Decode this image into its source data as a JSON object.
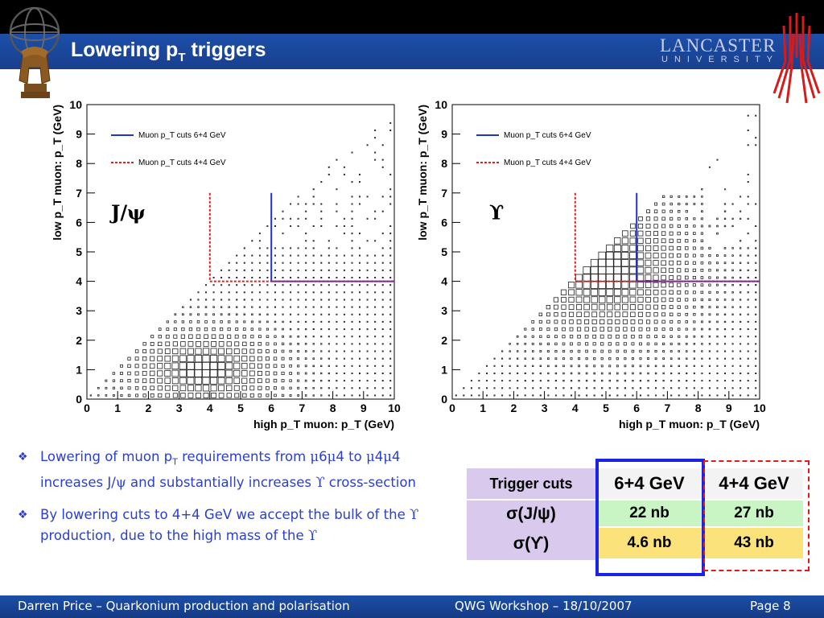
{
  "slide": {
    "title_main": "Lowering p",
    "title_sub": "T",
    "title_end": " triggers",
    "logo_text": "LANCASTER",
    "logo_subtext": "UNIVERSITY"
  },
  "chart_data": [
    {
      "type": "heatmap",
      "xlabel": "high p_T muon: p_T (GeV)",
      "ylabel": "low p_T muon: p_T (GeV)",
      "xlim": [
        0,
        10
      ],
      "ylim": [
        0,
        10
      ],
      "xticks": [
        "0",
        "1",
        "2",
        "3",
        "4",
        "5",
        "6",
        "7",
        "8",
        "9",
        "10"
      ],
      "yticks": [
        "0",
        "1",
        "2",
        "3",
        "4",
        "5",
        "6",
        "7",
        "8",
        "9",
        "10"
      ],
      "annotation": "J/ψ",
      "legend": [
        {
          "label": "Muon p_T cuts 6+4 GeV",
          "color": "#2233cc",
          "style": "solid"
        },
        {
          "label": "Muon p_T cuts 4+4 GeV",
          "color": "#e02020",
          "style": "dotted"
        }
      ],
      "legend_position": "top-left",
      "cuts": {
        "cut_6_4": {
          "x": 6,
          "y": 4
        },
        "cut_4_4": {
          "x": 4,
          "y": 4
        }
      },
      "peak": {
        "x": 3.8,
        "y": 1.0
      },
      "spread_x": 1.6,
      "spread_y": 0.9
    },
    {
      "type": "heatmap",
      "xlabel": "high p_T muon: p_T (GeV)",
      "ylabel": "low p_T muon: p_T (GeV)",
      "xlim": [
        0,
        10
      ],
      "ylim": [
        0,
        10
      ],
      "xticks": [
        "0",
        "1",
        "2",
        "3",
        "4",
        "5",
        "6",
        "7",
        "8",
        "9",
        "10"
      ],
      "yticks": [
        "0",
        "1",
        "2",
        "3",
        "4",
        "5",
        "6",
        "7",
        "8",
        "9",
        "10"
      ],
      "annotation": "ϒ",
      "legend": [
        {
          "label": "Muon p_T cuts 6+4 GeV",
          "color": "#2233cc",
          "style": "solid"
        },
        {
          "label": "Muon p_T cuts 4+4 GeV",
          "color": "#e02020",
          "style": "dotted"
        }
      ],
      "legend_position": "top-left",
      "cuts": {
        "cut_6_4": {
          "x": 6,
          "y": 4
        },
        "cut_4_4": {
          "x": 4,
          "y": 4
        }
      },
      "peak": {
        "x": 5.0,
        "y": 4.4
      },
      "spread_x": 1.8,
      "spread_y": 1.6
    }
  ],
  "bullets": [
    {
      "text_a": "Lowering of muon p",
      "text_a_sub": "T",
      "text_b": " requirements from ",
      "greek_b": "μ",
      "text_c": "6",
      "greek_c": "μ",
      "text_d": "4 to ",
      "greek_d": "μ",
      "text_e": "4",
      "greek_e": "μ",
      "text_f": "4 increases J/",
      "greek_f": "ψ",
      "text_g": " and substantially increases ",
      "greek_g": "ϒ",
      "text_h": " cross-section"
    },
    {
      "text_a": "By lowering cuts to 4+4 GeV we accept the bulk of the ",
      "greek_a": "ϒ",
      "text_b": " production, due to the high mass of the ",
      "greek_b": "ϒ"
    }
  ],
  "table": {
    "header_label": "Trigger cuts",
    "col1": "6+4 GeV",
    "col2": "4+4 GeV",
    "row1_label": "σ(J/ψ)",
    "row2_label": "σ(ϒ)",
    "row1_col1": "22 nb",
    "row1_col2": "27 nb",
    "row2_col1": "4.6 nb",
    "row2_col2": "43 nb"
  },
  "footer": {
    "left": "Darren Price – Quarkonium production and polarisation",
    "center": "QWG Workshop – 18/10/2007",
    "right": "Page 8"
  }
}
